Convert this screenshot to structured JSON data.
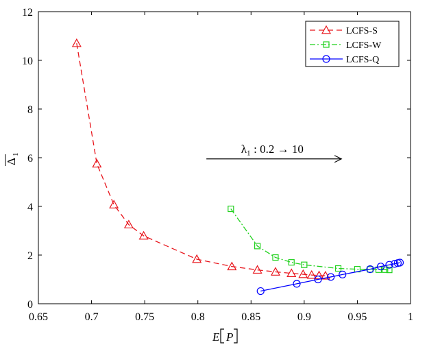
{
  "chart_data": {
    "type": "line",
    "xlabel": "E[P]",
    "ylabel": "Δ̄₁",
    "xlim": [
      0.65,
      1.0
    ],
    "ylim": [
      0,
      12
    ],
    "xticks": [
      "0.65",
      "0.7",
      "0.75",
      "0.8",
      "0.85",
      "0.9",
      "0.95",
      "1"
    ],
    "yticks": [
      "0",
      "2",
      "4",
      "6",
      "8",
      "10",
      "12"
    ],
    "grid": false,
    "legend_position": "top-right",
    "annotation": {
      "text": "λ₁ : 0.2 → 10",
      "arrow_from": [
        0.808,
        5.95
      ],
      "arrow_to": [
        0.935,
        5.95
      ],
      "text_at": [
        0.87,
        6.2
      ]
    },
    "series": [
      {
        "name": "LCFS-S",
        "color": "#e8141b",
        "dash": "dashed",
        "marker": "triangle",
        "x": [
          0.686,
          0.705,
          0.721,
          0.735,
          0.749,
          0.799,
          0.832,
          0.856,
          0.873,
          0.888,
          0.899,
          0.907,
          0.914,
          0.92
        ],
        "y": [
          10.7,
          5.75,
          4.07,
          3.25,
          2.79,
          1.83,
          1.53,
          1.39,
          1.31,
          1.25,
          1.21,
          1.18,
          1.16,
          1.15
        ]
      },
      {
        "name": "LCFS-W",
        "color": "#22d11f",
        "dash": "dashdot",
        "marker": "square",
        "x": [
          0.831,
          0.856,
          0.873,
          0.888,
          0.9,
          0.932,
          0.95,
          0.962,
          0.97,
          0.976,
          0.98
        ],
        "y": [
          3.9,
          2.37,
          1.9,
          1.7,
          1.6,
          1.45,
          1.42,
          1.41,
          1.4,
          1.4,
          1.39
        ]
      },
      {
        "name": "LCFS-Q",
        "color": "#0000ff",
        "dash": "solid",
        "marker": "circle",
        "x": [
          0.859,
          0.893,
          0.913,
          0.925,
          0.936,
          0.962,
          0.972,
          0.98,
          0.985,
          0.988,
          0.99
        ],
        "y": [
          0.52,
          0.82,
          1.0,
          1.1,
          1.2,
          1.42,
          1.53,
          1.6,
          1.64,
          1.67,
          1.69
        ]
      }
    ]
  }
}
